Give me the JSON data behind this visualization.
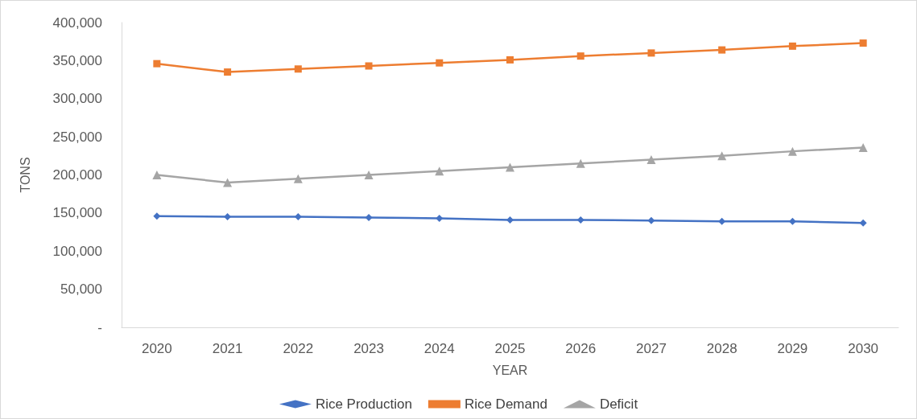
{
  "chart_data": {
    "type": "line",
    "xlabel": "YEAR",
    "ylabel": "TONS",
    "categories": [
      "2020",
      "2021",
      "2022",
      "2023",
      "2024",
      "2025",
      "2026",
      "2027",
      "2028",
      "2029",
      "2030"
    ],
    "series": [
      {
        "name": "Rice Production",
        "color": "#4472c4",
        "marker": "diamond",
        "values": [
          146000,
          145000,
          145000,
          144000,
          143000,
          141000,
          141000,
          140000,
          139000,
          139000,
          137000
        ]
      },
      {
        "name": "Rice Demand",
        "color": "#ed7d31",
        "marker": "square",
        "values": [
          346000,
          335000,
          339000,
          343000,
          347000,
          351000,
          356000,
          360000,
          364000,
          369000,
          373000
        ]
      },
      {
        "name": "Deficit",
        "color": "#a5a5a5",
        "marker": "triangle",
        "values": [
          200000,
          190000,
          195000,
          200000,
          205000,
          210000,
          215000,
          220000,
          225000,
          231000,
          236000
        ]
      }
    ],
    "ylim": [
      0,
      400000
    ],
    "yticks": [
      {
        "value": 0,
        "label": "-"
      },
      {
        "value": 50000,
        "label": "50,000"
      },
      {
        "value": 100000,
        "label": "100,000"
      },
      {
        "value": 150000,
        "label": "150,000"
      },
      {
        "value": 200000,
        "label": "200,000"
      },
      {
        "value": 250000,
        "label": "250,000"
      },
      {
        "value": 300000,
        "label": "300,000"
      },
      {
        "value": 350000,
        "label": "350,000"
      },
      {
        "value": 400000,
        "label": "400,000"
      }
    ],
    "grid": false,
    "legend": "bottom",
    "line_style": "solid"
  }
}
